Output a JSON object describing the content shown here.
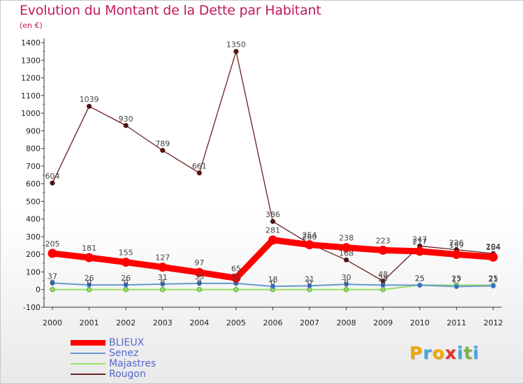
{
  "title": "Evolution du Montant de la Dette par Habitant",
  "subtitle": "(en €)",
  "logo": {
    "letters": [
      "P",
      "r",
      "o",
      "x",
      "i",
      "t",
      "i"
    ],
    "colors": [
      "#f2a800",
      "#4aa3df",
      "#f2a800",
      "#e8302b",
      "#4aa3df",
      "#7cb342",
      "#4aa3df"
    ]
  },
  "chart_data": {
    "type": "line",
    "title": "Evolution du Montant de la Dette par Habitant",
    "ylabel": "(en €)",
    "xlabel": "",
    "x": [
      "2000",
      "2001",
      "2002",
      "2003",
      "2004",
      "2005",
      "2006",
      "2007",
      "2008",
      "2009",
      "2010",
      "2011",
      "2012"
    ],
    "ylim": [
      -100,
      1400
    ],
    "yticks": [
      "-100",
      "0",
      "100",
      "200",
      "300",
      "400",
      "500",
      "600",
      "700",
      "800",
      "900",
      "1000",
      "1100",
      "1200",
      "1300",
      "1400"
    ],
    "grid": false,
    "legend_position": "bottom-left",
    "series": [
      {
        "name": "BLIEUX",
        "color": "#ff0000",
        "values": [
          205,
          181,
          155,
          127,
          97,
          65,
          281,
          254,
          238,
          223,
          217,
          199,
          184
        ],
        "labels": [
          "205",
          "181",
          "155",
          "127",
          "97",
          "65",
          "281",
          "254",
          "238",
          "223",
          "217",
          "199",
          "184"
        ]
      },
      {
        "name": "Senez",
        "color": "#6699cc",
        "values": [
          37,
          26,
          26,
          31,
          35,
          35,
          18,
          21,
          30,
          25,
          25,
          17,
          21
        ],
        "labels": [
          "37",
          "26",
          "26",
          "31",
          "35",
          "35",
          "18",
          "21",
          "30",
          "25",
          "25",
          "17",
          "21"
        ]
      },
      {
        "name": "Majastres",
        "color": "#99dd66",
        "values": [
          0,
          0,
          0,
          0,
          0,
          0,
          0,
          0,
          0,
          0,
          25,
          25,
          25
        ],
        "labels": [
          "0",
          "0",
          "0",
          "0",
          "0",
          "0",
          "0",
          "0",
          "0",
          "0",
          "25",
          "25",
          "25"
        ]
      },
      {
        "name": "Rougon",
        "color": "#6b1f1f",
        "values": [
          604,
          1039,
          930,
          789,
          661,
          1350,
          386,
          260,
          168,
          48,
          247,
          226,
          204
        ],
        "labels": [
          "604",
          "1039",
          "930",
          "789",
          "661",
          "1350",
          "386",
          "260",
          "168",
          "48",
          "247",
          "226",
          "204"
        ]
      }
    ]
  }
}
